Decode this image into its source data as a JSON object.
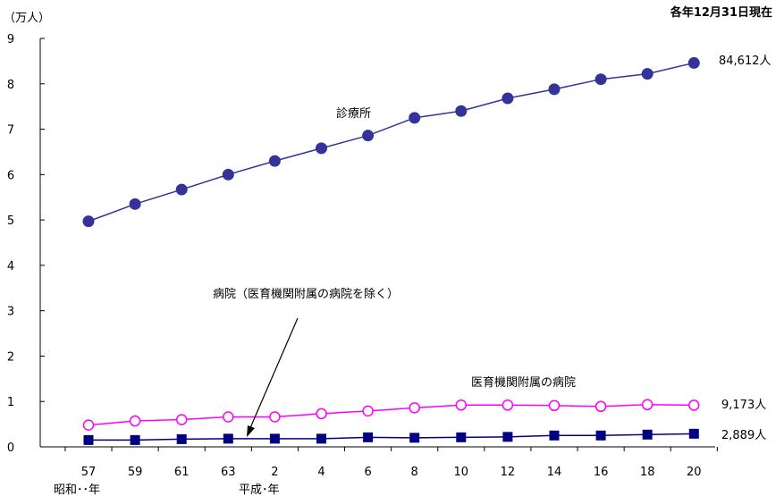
{
  "chart_data": {
    "type": "line",
    "y_unit": "（万人）",
    "date_note": "各年12月31日現在",
    "xlabel_showa": "昭和･･年",
    "xlabel_heisei": "平成･年",
    "categories": [
      "57",
      "59",
      "61",
      "63",
      "2",
      "4",
      "6",
      "8",
      "10",
      "12",
      "14",
      "16",
      "18",
      "20"
    ],
    "ylim": [
      0,
      9
    ],
    "yticks": [
      "0",
      "1",
      "2",
      "3",
      "4",
      "5",
      "6",
      "7",
      "8",
      "9"
    ],
    "grid": false,
    "series": [
      {
        "name": "診療所",
        "color": "#333399",
        "marker": "circle-filled",
        "values": [
          4.97,
          5.35,
          5.67,
          6.0,
          6.3,
          6.58,
          6.86,
          7.25,
          7.4,
          7.68,
          7.88,
          8.1,
          8.22,
          8.46
        ],
        "end_label": "84,612人"
      },
      {
        "name": "医育機関附属の病院",
        "color": "#ff00ff",
        "marker": "circle-open",
        "values": [
          0.48,
          0.57,
          0.6,
          0.66,
          0.66,
          0.73,
          0.79,
          0.86,
          0.92,
          0.92,
          0.91,
          0.89,
          0.93,
          0.917
        ],
        "end_label": "9,173人"
      },
      {
        "name": "病院（医育機関附属の病院を除く）",
        "color": "#000080",
        "marker": "square-filled",
        "values": [
          0.15,
          0.15,
          0.17,
          0.18,
          0.18,
          0.18,
          0.21,
          0.2,
          0.21,
          0.22,
          0.25,
          0.25,
          0.27,
          0.289
        ],
        "end_label": "2,889人"
      }
    ]
  }
}
